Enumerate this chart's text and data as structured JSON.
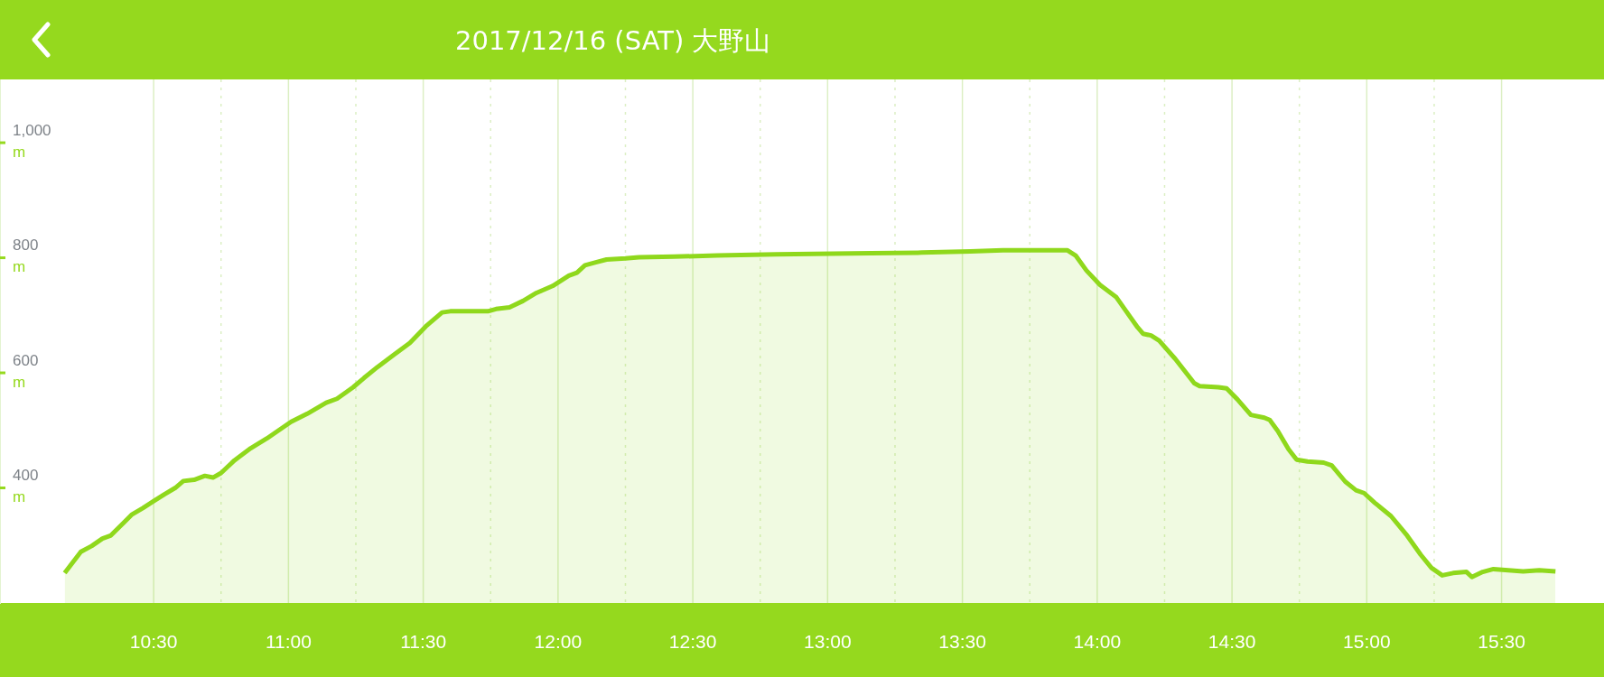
{
  "chart_data": {
    "type": "area",
    "title": "2017/12/16 (SAT) 大野山",
    "x": [
      10.17,
      10.23,
      10.27,
      10.31,
      10.34,
      10.39,
      10.42,
      10.46,
      10.5,
      10.54,
      10.58,
      10.61,
      10.65,
      10.69,
      10.72,
      10.75,
      10.8,
      10.86,
      10.92,
      10.96,
      11.01,
      11.07,
      11.14,
      11.18,
      11.24,
      11.28,
      11.33,
      11.39,
      11.45,
      11.51,
      11.57,
      11.6,
      11.74,
      11.77,
      11.82,
      11.87,
      11.92,
      11.98,
      12.04,
      12.07,
      12.1,
      12.14,
      12.18,
      12.25,
      12.3,
      12.43,
      12.59,
      12.81,
      13.16,
      13.35,
      13.53,
      13.65,
      13.84,
      13.89,
      13.92,
      13.96,
      14.01,
      14.07,
      14.1,
      14.15,
      14.17,
      14.2,
      14.23,
      14.29,
      14.36,
      14.38,
      14.45,
      14.48,
      14.52,
      14.57,
      14.62,
      14.64,
      14.67,
      14.71,
      14.74,
      14.78,
      14.84,
      14.87,
      14.92,
      14.96,
      14.99,
      15.03,
      15.09,
      15.15,
      15.2,
      15.24,
      15.28,
      15.32,
      15.37,
      15.39,
      15.43,
      15.47,
      15.58,
      15.64,
      15.7
    ],
    "series": [
      {
        "color": "#8fd81c",
        "values": [
          252,
          289,
          299,
          312,
          317,
          340,
          354,
          365,
          377,
          389,
          400,
          412,
          414,
          421,
          418,
          426,
          448,
          469,
          486,
          499,
          515,
          529,
          548,
          555,
          575,
          591,
          610,
          631,
          652,
          681,
          705,
          707,
          707,
          711,
          714,
          725,
          739,
          751,
          769,
          774,
          787,
          792,
          797,
          799,
          801,
          802,
          804,
          806,
          808,
          809,
          811,
          813,
          813,
          813,
          804,
          778,
          753,
          732,
          712,
          679,
          668,
          665,
          656,
          624,
          582,
          577,
          575,
          573,
          554,
          527,
          522,
          518,
          499,
          467,
          449,
          446,
          444,
          439,
          411,
          396,
          391,
          374,
          351,
          317,
          284,
          261,
          248,
          252,
          254,
          245,
          254,
          259,
          255,
          257,
          255
        ]
      }
    ],
    "xlim": [
      9.93,
      15.88
    ],
    "xticks": [
      {
        "value": 10.5,
        "label": "10:30"
      },
      {
        "value": 10.75,
        "label": null
      },
      {
        "value": 11,
        "label": "11:00"
      },
      {
        "value": 11.25,
        "label": null
      },
      {
        "value": 11.5,
        "label": "11:30"
      },
      {
        "value": 11.75,
        "label": null
      },
      {
        "value": 12,
        "label": "12:00"
      },
      {
        "value": 12.25,
        "label": null
      },
      {
        "value": 12.5,
        "label": "12:30"
      },
      {
        "value": 12.75,
        "label": null
      },
      {
        "value": 13,
        "label": "13:00"
      },
      {
        "value": 13.25,
        "label": null
      },
      {
        "value": 13.5,
        "label": "13:30"
      },
      {
        "value": 13.75,
        "label": null
      },
      {
        "value": 14,
        "label": "14:00"
      },
      {
        "value": 14.25,
        "label": null
      },
      {
        "value": 14.5,
        "label": "14:30"
      },
      {
        "value": 14.75,
        "label": null
      },
      {
        "value": 15,
        "label": "15:00"
      },
      {
        "value": 15.25,
        "label": null
      },
      {
        "value": 15.5,
        "label": "15:30"
      }
    ],
    "ylim": [
      200,
      1110
    ],
    "yticks": [
      {
        "value": 400,
        "label": "400 m"
      },
      {
        "value": 600,
        "label": "600 m"
      },
      {
        "value": 800,
        "label": "800 m"
      },
      {
        "value": 1000,
        "label": "1,000 m"
      }
    ],
    "grid": "x",
    "legend": false
  }
}
